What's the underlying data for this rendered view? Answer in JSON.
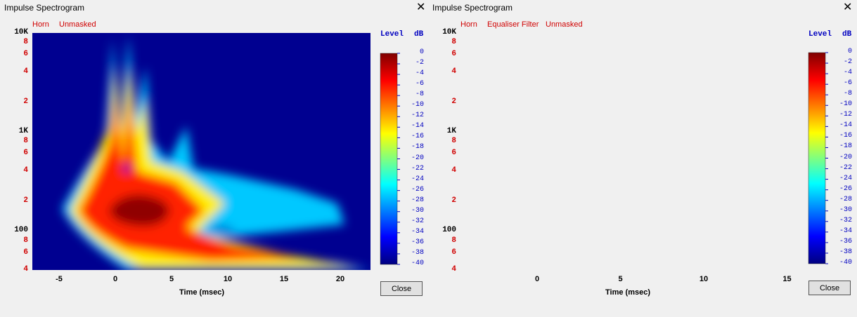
{
  "windows": [
    {
      "title": "Impulse Spectrogram",
      "labels": [
        "Horn",
        "Unmasked"
      ],
      "y_ticks": [
        "10K",
        "8",
        "6",
        "4",
        "2",
        "1K",
        "8",
        "6",
        "4",
        "2",
        "100",
        "8",
        "6",
        "4"
      ],
      "x_ticks": [
        -5,
        0,
        5,
        10,
        15,
        20
      ],
      "x_axis_label": "Time (msec)",
      "colorbar": {
        "title": "Level",
        "unit": "dB",
        "ticks": [
          0,
          -2,
          -4,
          -6,
          -8,
          -10,
          -12,
          -14,
          -16,
          -18,
          -20,
          -22,
          -24,
          -26,
          -28,
          -30,
          -32,
          -34,
          -36,
          -38,
          -40
        ]
      },
      "button": "Close"
    },
    {
      "title": "Impulse Spectrogram",
      "labels": [
        "Horn",
        "Equaliser Filter",
        "Unmasked"
      ],
      "y_ticks": [
        "10K",
        "8",
        "6",
        "4",
        "2",
        "1K",
        "8",
        "6",
        "4",
        "2",
        "100",
        "8",
        "6",
        "4"
      ],
      "x_ticks": [
        0,
        5,
        10,
        15
      ],
      "x_axis_label": "Time (msec)",
      "colorbar": {
        "title": "Level",
        "unit": "dB",
        "ticks": [
          0,
          -2,
          -4,
          -6,
          -8,
          -10,
          -12,
          -14,
          -16,
          -18,
          -20,
          -22,
          -24,
          -26,
          -28,
          -30,
          -32,
          -34,
          -36,
          -38,
          -40
        ]
      },
      "button": "Close"
    }
  ]
}
